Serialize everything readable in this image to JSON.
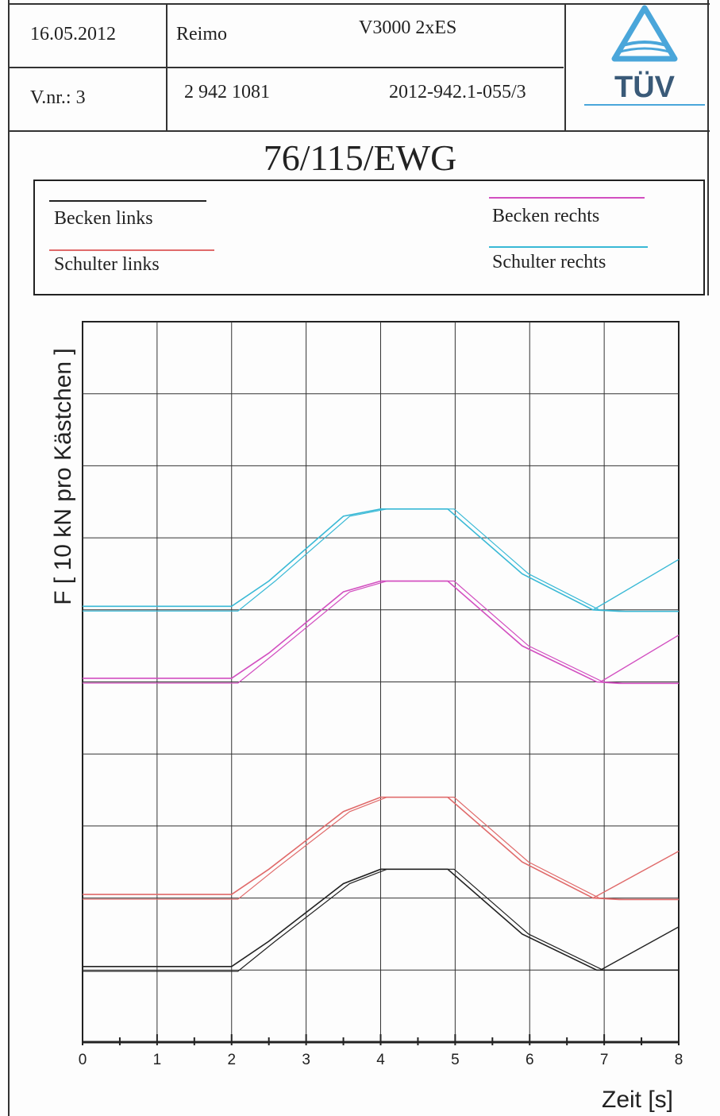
{
  "header": {
    "date": "16.05.2012",
    "manufacturer": "Reimo",
    "model": "V3000  2xES",
    "version": "V.nr.: 3",
    "number": "2 942 1081",
    "report_id": "2012-942.1-055/3",
    "logo_text": "TÜV"
  },
  "title": "76/115/EWG",
  "legend": [
    {
      "label": "Becken links",
      "color": "#222222"
    },
    {
      "label": "Schulter links",
      "color": "#e06a6a"
    },
    {
      "label": "Becken rechts",
      "color": "#d24fc0"
    },
    {
      "label": "Schulter rechts",
      "color": "#39b9d6"
    }
  ],
  "chart_data": {
    "type": "line",
    "xlabel": "Zeit [s]",
    "ylabel": "F [ 10 kN pro Kästchen ]",
    "xlim": [
      0,
      8
    ],
    "x_ticks": [
      "0",
      "1",
      "2",
      "3",
      "4",
      "5",
      "6",
      "7",
      "8"
    ],
    "ylim": [
      0,
      10
    ],
    "grid": true,
    "series": [
      {
        "name": "Schulter rechts",
        "color": "#39b9d6",
        "x": [
          0,
          2.0,
          2.5,
          3.5,
          4.0,
          4.9,
          5.9,
          6.85,
          7.2,
          8.0
        ],
        "y": [
          6.05,
          6.05,
          6.4,
          7.3,
          7.4,
          7.4,
          6.5,
          6.0,
          5.98,
          5.98
        ],
        "secondary_rise": [
          [
            6.85,
            6.0
          ],
          [
            8.0,
            6.7
          ]
        ]
      },
      {
        "name": "Becken rechts",
        "color": "#d24fc0",
        "x": [
          0,
          2.0,
          2.5,
          3.5,
          4.0,
          4.9,
          5.9,
          6.9,
          7.2,
          8.0
        ],
        "y": [
          5.05,
          5.05,
          5.4,
          6.25,
          6.4,
          6.4,
          5.5,
          5.0,
          4.98,
          4.98
        ],
        "secondary_rise": [
          [
            6.95,
            5.0
          ],
          [
            8.0,
            5.65
          ]
        ]
      },
      {
        "name": "Schulter links",
        "color": "#e06a6a",
        "x": [
          0,
          2.0,
          2.5,
          3.5,
          4.0,
          4.9,
          5.9,
          6.85,
          7.2,
          8.0
        ],
        "y": [
          2.05,
          2.05,
          2.4,
          3.2,
          3.4,
          3.4,
          2.5,
          2.0,
          1.98,
          1.98
        ],
        "secondary_rise": [
          [
            6.85,
            2.0
          ],
          [
            8.0,
            2.65
          ]
        ]
      },
      {
        "name": "Becken links",
        "color": "#222222",
        "x": [
          0,
          2.0,
          2.5,
          3.5,
          4.0,
          4.9,
          5.9,
          6.9,
          7.2,
          8.0
        ],
        "y": [
          1.05,
          1.05,
          1.4,
          2.2,
          2.4,
          2.4,
          1.5,
          1.0,
          1.0,
          1.0
        ],
        "secondary_rise": [
          [
            6.95,
            1.0
          ],
          [
            8.0,
            1.6
          ]
        ]
      }
    ]
  }
}
